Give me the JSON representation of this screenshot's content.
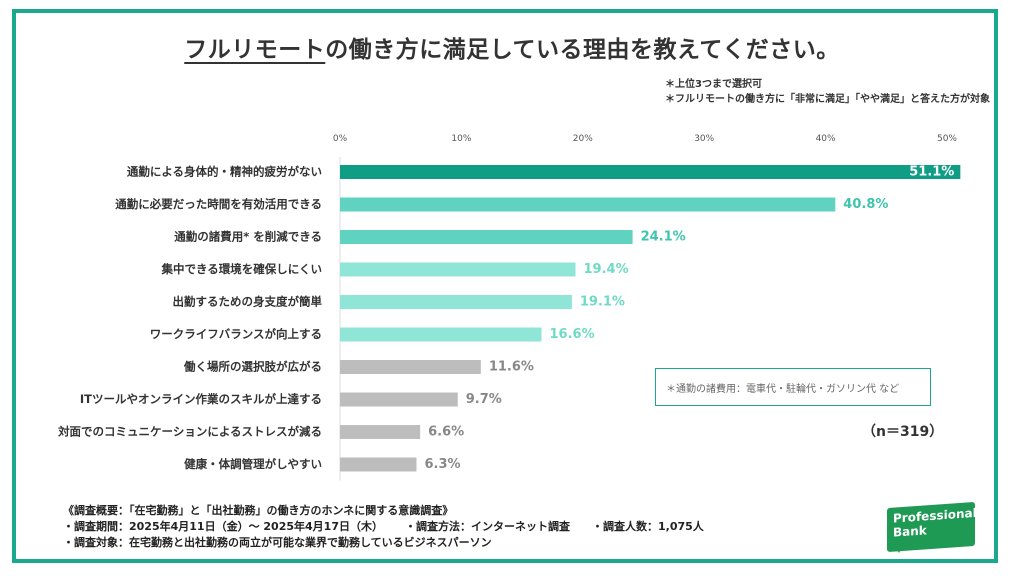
{
  "title": {
    "underlined": "フルリモート",
    "rest": "の働き方に満足している理由を教えてください。"
  },
  "notes": [
    "＊上位3つまで選択可",
    "＊フルリモートの働き方に「非常に満足」「やや満足」と答えた方が対象"
  ],
  "legend_note": "＊通勤の諸費用：電車代・駐輪代・ガソリン代 など",
  "n_label": "（n＝319）",
  "summary": {
    "line1": "《調査概要：「在宅勤務」と「出社勤務」の働き方のホンネに関する意識調査》",
    "period": "・調査期間：2025年4月11日（金）〜 2025年4月17日（木）",
    "method": "・調査方法：インターネット調査",
    "count": "・調査人数：1,075人",
    "target": "・調査対象：在宅勤務と出社勤務の両立が可能な業界で勤務しているビジネスパーソン"
  },
  "logo": {
    "line1": "Professional",
    "line2": "Bank"
  },
  "colors": {
    "frame": "#1aa88f",
    "top": "#0f9d86",
    "mid": "#5fd3bf",
    "light": "#8fe6d6",
    "gray": "#bdbdbd",
    "gray_text": "#888888",
    "logo": "#1f9a55"
  },
  "chart_data": {
    "type": "bar",
    "orientation": "horizontal",
    "xlim": [
      0,
      50
    ],
    "ticks": [
      0,
      10,
      20,
      30,
      40,
      50
    ],
    "tick_labels": [
      "0%",
      "10%",
      "20%",
      "30%",
      "40%",
      "50%"
    ],
    "categories": [
      "通勤による身体的・精神的疲労がない",
      "通勤に必要だった時間を有効活用できる",
      "通勤の諸費用* を削減できる",
      "集中できる環境を確保しにくい",
      "出勤するための身支度が簡単",
      "ワークライフバランスが向上する",
      "働く場所の選択肢が広がる",
      "ITツールやオンライン作業のスキルが上達する",
      "対面でのコミュニケーションによるストレスが減る",
      "健康・体調管理がしやすい"
    ],
    "values": [
      51.1,
      40.8,
      24.1,
      19.4,
      19.1,
      16.6,
      11.6,
      9.7,
      6.6,
      6.3
    ],
    "value_labels": [
      "51.1%",
      "40.8%",
      "24.1%",
      "19.4%",
      "19.1%",
      "16.6%",
      "11.6%",
      "9.7%",
      "6.6%",
      "6.3%"
    ],
    "bar_color_groups": [
      "top",
      "mid",
      "mid",
      "light",
      "light",
      "light",
      "gray",
      "gray",
      "gray",
      "gray"
    ]
  }
}
